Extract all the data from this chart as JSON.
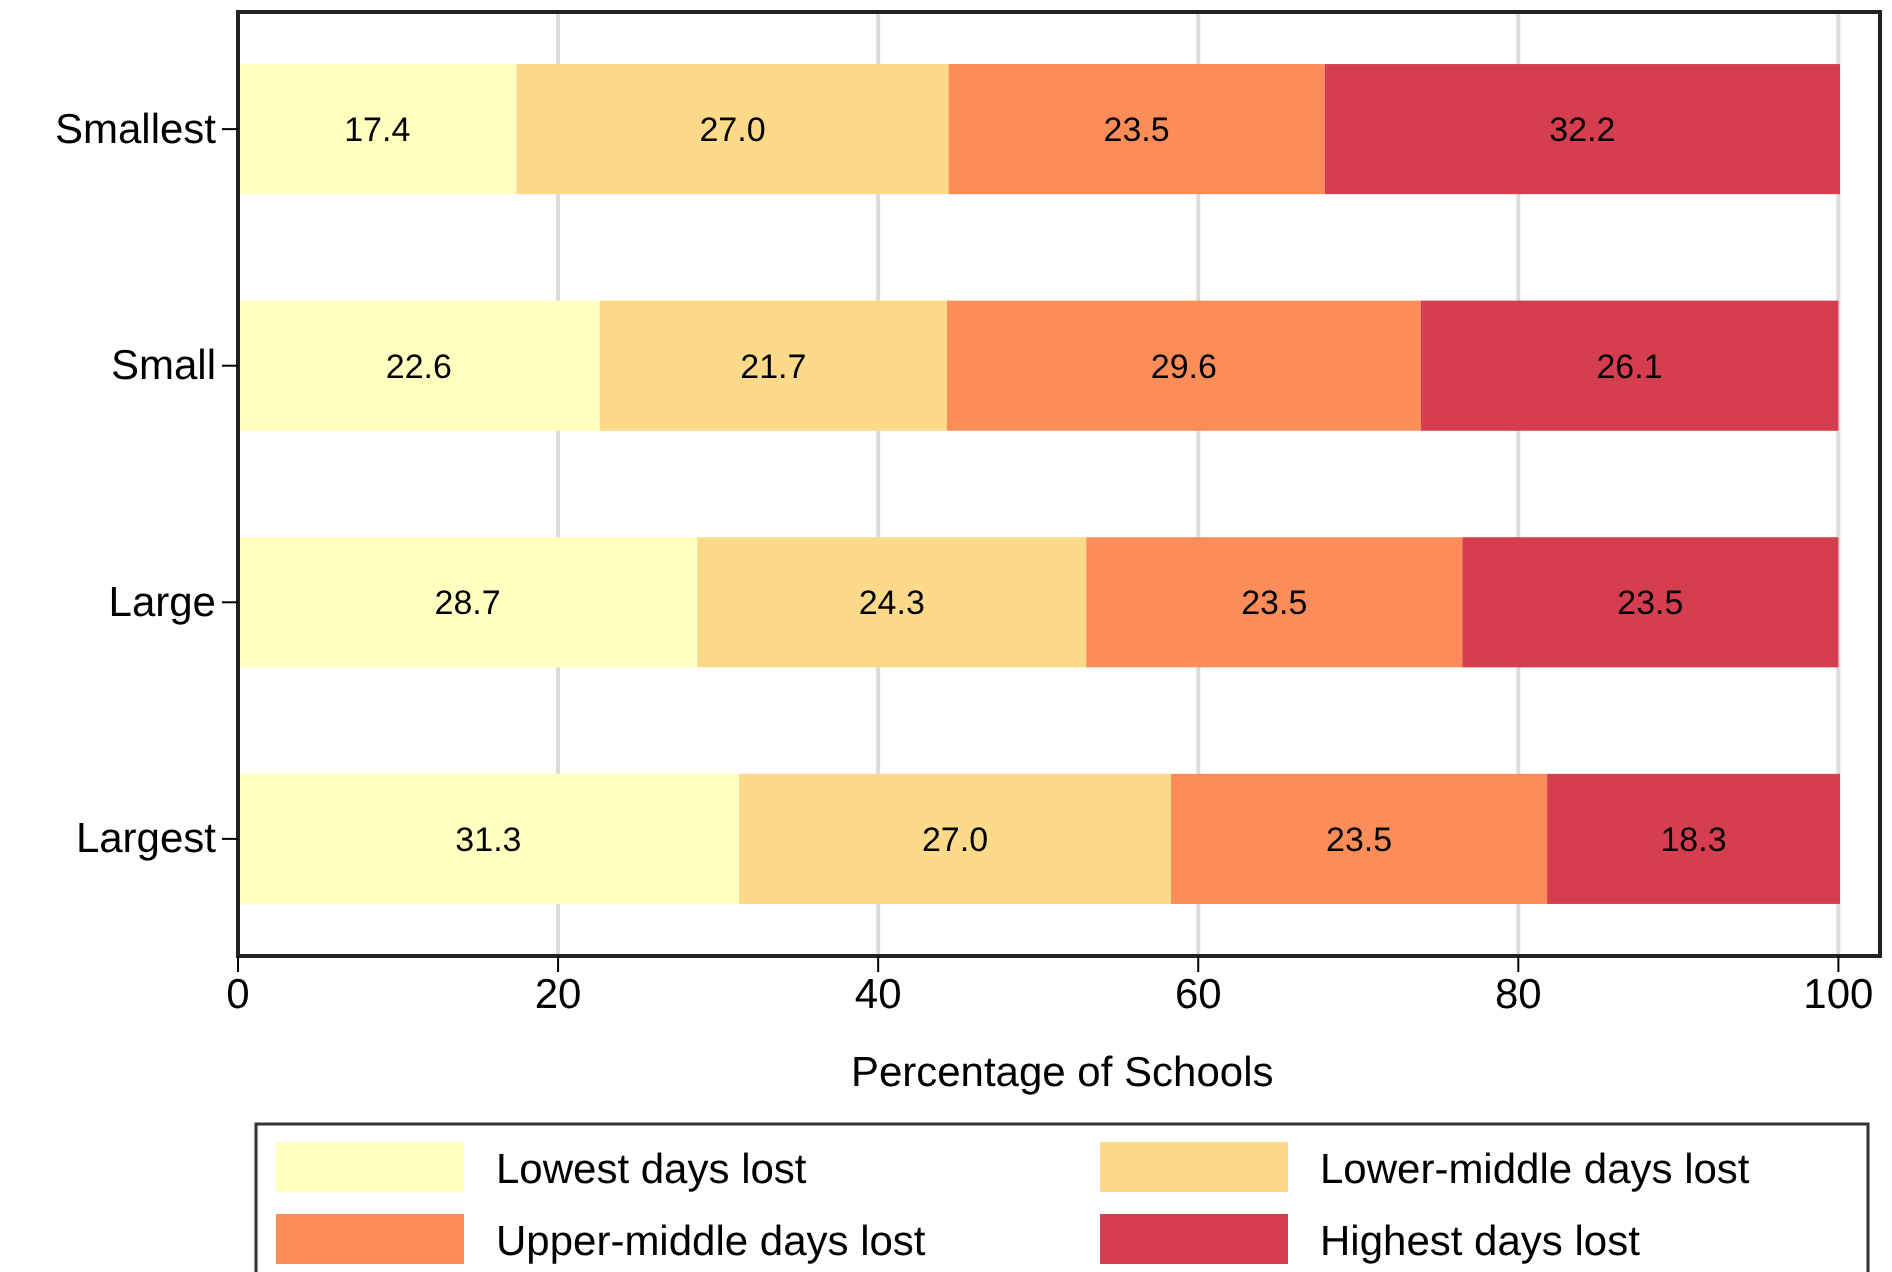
{
  "chart_data": {
    "type": "bar",
    "orientation": "horizontal",
    "stacked": true,
    "xlabel": "Percentage of Schools",
    "categories": [
      "Smallest",
      "Small",
      "Large",
      "Largest"
    ],
    "series": [
      {
        "name": "Lowest days lost",
        "color": "#ffffbf",
        "values": [
          17.4,
          22.6,
          28.7,
          31.3
        ],
        "value_labels": [
          "17.4",
          "22.6",
          "28.7",
          "31.3"
        ]
      },
      {
        "name": "Lower-middle days lost",
        "color": "#fdd98a",
        "values": [
          27,
          21.7,
          24.3,
          27
        ],
        "value_labels": [
          "27.0",
          "21.7",
          "24.3",
          "27.0"
        ]
      },
      {
        "name": "Upper-middle days lost",
        "color": "#fc8d59",
        "values": [
          23.5,
          29.6,
          23.5,
          23.5
        ],
        "value_labels": [
          "23.5",
          "29.6",
          "23.5",
          "23.5"
        ]
      },
      {
        "name": "Highest days lost",
        "color": "#d53e4f",
        "values": [
          32.2,
          26.1,
          23.5,
          18.3
        ],
        "value_labels": [
          "32.2",
          "26.1",
          "23.5",
          "18.3"
        ]
      }
    ],
    "xlim": [
      0,
      102.6
    ],
    "xticks": [
      0,
      20,
      40,
      60,
      80,
      100
    ],
    "grid": "x",
    "legend": "bottom"
  }
}
